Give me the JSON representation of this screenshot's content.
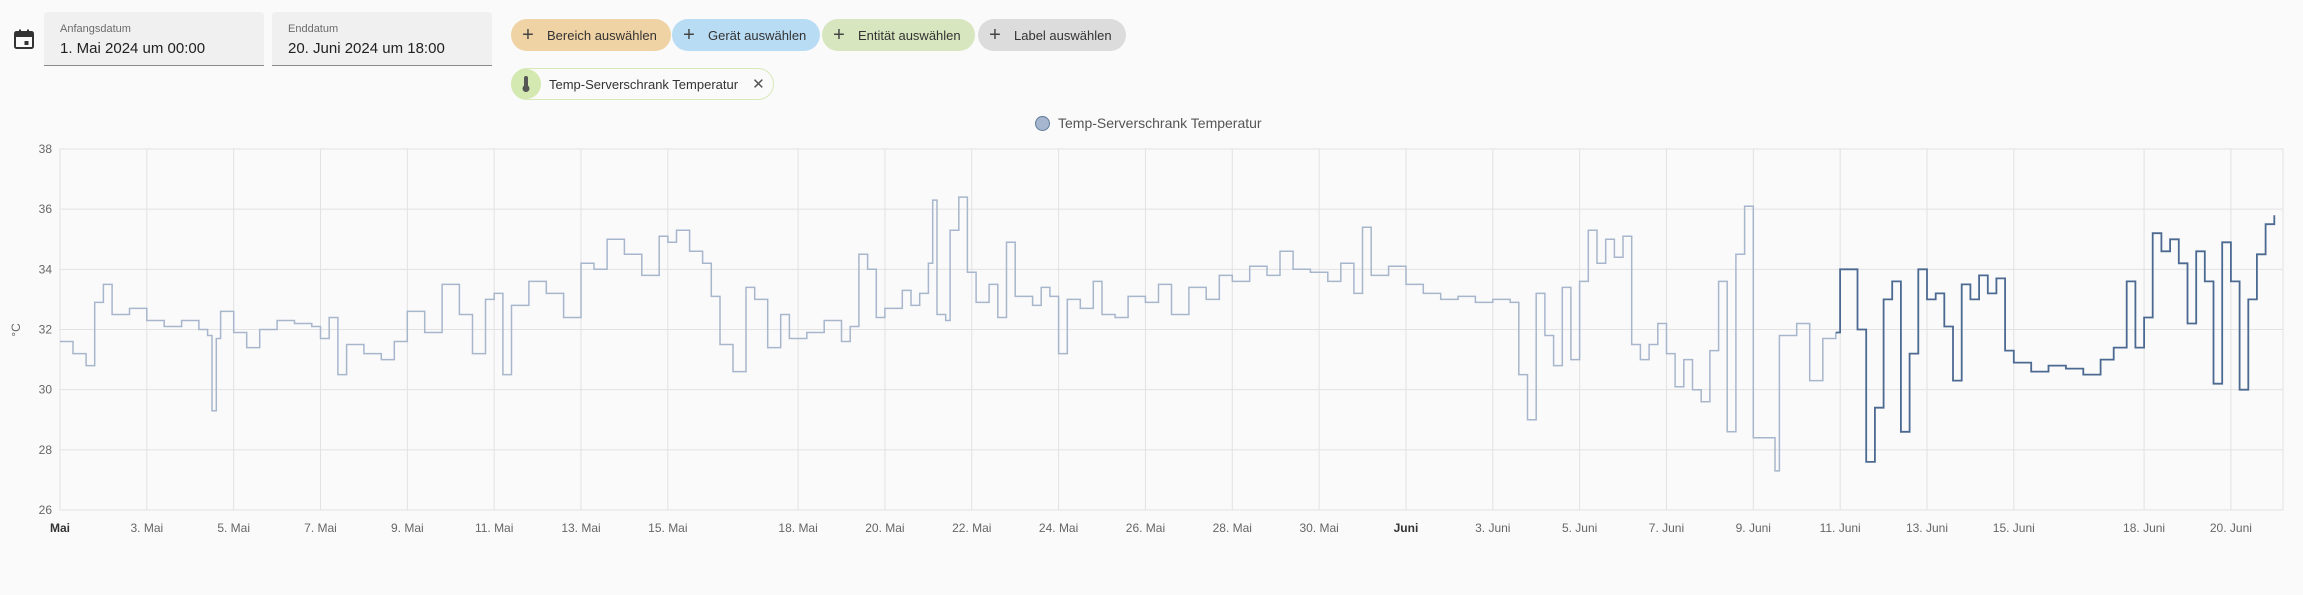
{
  "date_picker": {
    "start_label": "Anfangsdatum",
    "start_value": "1. Mai 2024 um 00:00",
    "end_label": "Enddatum",
    "end_value": "20. Juni 2024 um 18:00"
  },
  "target_chips": [
    {
      "label": "Bereich auswählen",
      "color": "#f0d3a4"
    },
    {
      "label": "Gerät auswählen",
      "color": "#b9dcf5"
    },
    {
      "label": "Entität auswählen",
      "color": "#d7e6be"
    },
    {
      "label": "Label auswählen",
      "color": "#dcdcdc"
    }
  ],
  "selected_entity": {
    "label": "Temp-Serverschrank Temperatur",
    "icon": "thermometer-icon"
  },
  "chart_data": {
    "type": "line",
    "legend": "Temp-Serverschrank Temperatur",
    "ylabel": "°C",
    "ylim": [
      26,
      38
    ],
    "yticks": [
      26,
      28,
      30,
      32,
      34,
      36,
      38
    ],
    "xlim_days": [
      0,
      51.2
    ],
    "xticks": [
      {
        "label": "Mai",
        "day": 0,
        "major": true
      },
      {
        "label": "3. Mai",
        "day": 2
      },
      {
        "label": "5. Mai",
        "day": 4
      },
      {
        "label": "7. Mai",
        "day": 6
      },
      {
        "label": "9. Mai",
        "day": 8
      },
      {
        "label": "11. Mai",
        "day": 10
      },
      {
        "label": "13. Mai",
        "day": 12
      },
      {
        "label": "15. Mai",
        "day": 14
      },
      {
        "label": "18. Mai",
        "day": 17
      },
      {
        "label": "20. Mai",
        "day": 19
      },
      {
        "label": "22. Mai",
        "day": 21
      },
      {
        "label": "24. Mai",
        "day": 23
      },
      {
        "label": "26. Mai",
        "day": 25
      },
      {
        "label": "28. Mai",
        "day": 27
      },
      {
        "label": "30. Mai",
        "day": 29
      },
      {
        "label": "Juni",
        "day": 31,
        "major": true
      },
      {
        "label": "3. Juni",
        "day": 33
      },
      {
        "label": "5. Juni",
        "day": 35
      },
      {
        "label": "7. Juni",
        "day": 37
      },
      {
        "label": "9. Juni",
        "day": 39
      },
      {
        "label": "11. Juni",
        "day": 41
      },
      {
        "label": "13. Juni",
        "day": 43
      },
      {
        "label": "15. Juni",
        "day": 45
      },
      {
        "label": "18. Juni",
        "day": 48
      },
      {
        "label": "20. Juni",
        "day": 50
      }
    ],
    "series": [
      {
        "name": "Temp-Serverschrank Temperatur",
        "colors": {
          "older": "#a7b6cc",
          "recent": "#4c6a91"
        },
        "recent_from_day": 40.9,
        "points": [
          [
            0,
            31.6
          ],
          [
            0.3,
            31.2
          ],
          [
            0.6,
            30.8
          ],
          [
            0.8,
            32.9
          ],
          [
            1.0,
            33.5
          ],
          [
            1.2,
            32.5
          ],
          [
            1.6,
            32.7
          ],
          [
            2.0,
            32.3
          ],
          [
            2.4,
            32.1
          ],
          [
            2.8,
            32.3
          ],
          [
            3.2,
            32.0
          ],
          [
            3.4,
            31.8
          ],
          [
            3.5,
            29.3
          ],
          [
            3.6,
            31.7
          ],
          [
            3.7,
            32.6
          ],
          [
            4.0,
            31.9
          ],
          [
            4.3,
            31.4
          ],
          [
            4.6,
            32.0
          ],
          [
            5.0,
            32.3
          ],
          [
            5.4,
            32.2
          ],
          [
            5.8,
            32.1
          ],
          [
            6.0,
            31.7
          ],
          [
            6.2,
            32.4
          ],
          [
            6.4,
            30.5
          ],
          [
            6.6,
            31.5
          ],
          [
            7.0,
            31.2
          ],
          [
            7.4,
            31.0
          ],
          [
            7.7,
            31.6
          ],
          [
            8.0,
            32.6
          ],
          [
            8.4,
            31.9
          ],
          [
            8.8,
            33.5
          ],
          [
            9.2,
            32.5
          ],
          [
            9.5,
            31.2
          ],
          [
            9.8,
            33.0
          ],
          [
            10.0,
            33.2
          ],
          [
            10.2,
            30.5
          ],
          [
            10.4,
            32.8
          ],
          [
            10.8,
            33.6
          ],
          [
            11.2,
            33.2
          ],
          [
            11.6,
            32.4
          ],
          [
            12.0,
            34.2
          ],
          [
            12.3,
            34.0
          ],
          [
            12.6,
            35.0
          ],
          [
            13.0,
            34.5
          ],
          [
            13.4,
            33.8
          ],
          [
            13.8,
            35.1
          ],
          [
            14.0,
            34.9
          ],
          [
            14.2,
            35.3
          ],
          [
            14.5,
            34.6
          ],
          [
            14.8,
            34.2
          ],
          [
            15.0,
            33.1
          ],
          [
            15.2,
            31.5
          ],
          [
            15.5,
            30.6
          ],
          [
            15.8,
            33.4
          ],
          [
            16.0,
            33.0
          ],
          [
            16.3,
            31.4
          ],
          [
            16.6,
            32.5
          ],
          [
            16.8,
            31.7
          ],
          [
            17.2,
            31.9
          ],
          [
            17.6,
            32.3
          ],
          [
            18.0,
            31.6
          ],
          [
            18.2,
            32.1
          ],
          [
            18.4,
            34.5
          ],
          [
            18.6,
            34.0
          ],
          [
            18.8,
            32.4
          ],
          [
            19.0,
            32.7
          ],
          [
            19.4,
            33.3
          ],
          [
            19.6,
            32.8
          ],
          [
            19.8,
            33.2
          ],
          [
            20.0,
            34.2
          ],
          [
            20.1,
            36.3
          ],
          [
            20.2,
            32.5
          ],
          [
            20.4,
            32.3
          ],
          [
            20.5,
            35.3
          ],
          [
            20.7,
            36.4
          ],
          [
            20.9,
            33.9
          ],
          [
            21.1,
            32.9
          ],
          [
            21.4,
            33.5
          ],
          [
            21.6,
            32.4
          ],
          [
            21.8,
            34.9
          ],
          [
            22.0,
            33.1
          ],
          [
            22.4,
            32.8
          ],
          [
            22.6,
            33.4
          ],
          [
            22.8,
            33.1
          ],
          [
            23.0,
            31.2
          ],
          [
            23.2,
            33.0
          ],
          [
            23.5,
            32.7
          ],
          [
            23.8,
            33.6
          ],
          [
            24.0,
            32.5
          ],
          [
            24.3,
            32.4
          ],
          [
            24.6,
            33.1
          ],
          [
            25.0,
            32.9
          ],
          [
            25.3,
            33.5
          ],
          [
            25.6,
            32.5
          ],
          [
            26.0,
            33.4
          ],
          [
            26.4,
            33.0
          ],
          [
            26.7,
            33.8
          ],
          [
            27.0,
            33.6
          ],
          [
            27.4,
            34.1
          ],
          [
            27.8,
            33.8
          ],
          [
            28.1,
            34.6
          ],
          [
            28.4,
            34.0
          ],
          [
            28.8,
            33.9
          ],
          [
            29.2,
            33.6
          ],
          [
            29.5,
            34.2
          ],
          [
            29.8,
            33.2
          ],
          [
            30.0,
            35.4
          ],
          [
            30.2,
            33.8
          ],
          [
            30.6,
            34.1
          ],
          [
            31.0,
            33.5
          ],
          [
            31.4,
            33.2
          ],
          [
            31.8,
            33.0
          ],
          [
            32.2,
            33.1
          ],
          [
            32.6,
            32.9
          ],
          [
            33.0,
            33.0
          ],
          [
            33.4,
            32.9
          ],
          [
            33.6,
            30.5
          ],
          [
            33.8,
            29.0
          ],
          [
            34.0,
            33.2
          ],
          [
            34.2,
            31.8
          ],
          [
            34.4,
            30.8
          ],
          [
            34.6,
            33.4
          ],
          [
            34.8,
            31.0
          ],
          [
            35.0,
            33.6
          ],
          [
            35.2,
            35.3
          ],
          [
            35.4,
            34.2
          ],
          [
            35.6,
            35.0
          ],
          [
            35.8,
            34.4
          ],
          [
            36.0,
            35.1
          ],
          [
            36.2,
            31.5
          ],
          [
            36.4,
            31.0
          ],
          [
            36.6,
            31.5
          ],
          [
            36.8,
            32.2
          ],
          [
            37.0,
            31.2
          ],
          [
            37.2,
            30.1
          ],
          [
            37.4,
            31.0
          ],
          [
            37.6,
            30.0
          ],
          [
            37.8,
            29.6
          ],
          [
            38.0,
            31.3
          ],
          [
            38.2,
            33.6
          ],
          [
            38.4,
            28.6
          ],
          [
            38.6,
            34.5
          ],
          [
            38.8,
            36.1
          ],
          [
            39.0,
            28.4
          ],
          [
            39.2,
            28.4
          ],
          [
            39.4,
            28.4
          ],
          [
            39.5,
            27.3
          ],
          [
            39.6,
            31.8
          ],
          [
            40.0,
            32.2
          ],
          [
            40.3,
            30.3
          ],
          [
            40.6,
            31.7
          ],
          [
            40.9,
            31.9
          ],
          [
            41.0,
            34.0
          ],
          [
            41.2,
            34.0
          ],
          [
            41.4,
            32.0
          ],
          [
            41.6,
            27.6
          ],
          [
            41.8,
            29.4
          ],
          [
            42.0,
            33.0
          ],
          [
            42.2,
            33.6
          ],
          [
            42.4,
            28.6
          ],
          [
            42.6,
            31.2
          ],
          [
            42.8,
            34.0
          ],
          [
            43.0,
            33.0
          ],
          [
            43.2,
            33.2
          ],
          [
            43.4,
            32.1
          ],
          [
            43.6,
            30.3
          ],
          [
            43.8,
            33.5
          ],
          [
            44.0,
            33.0
          ],
          [
            44.2,
            33.8
          ],
          [
            44.4,
            33.2
          ],
          [
            44.6,
            33.7
          ],
          [
            44.8,
            31.3
          ],
          [
            45.0,
            30.9
          ],
          [
            45.4,
            30.6
          ],
          [
            45.8,
            30.8
          ],
          [
            46.2,
            30.7
          ],
          [
            46.6,
            30.5
          ],
          [
            47.0,
            31.0
          ],
          [
            47.3,
            31.4
          ],
          [
            47.6,
            33.6
          ],
          [
            47.8,
            31.4
          ],
          [
            48.0,
            32.4
          ],
          [
            48.2,
            35.2
          ],
          [
            48.4,
            34.6
          ],
          [
            48.6,
            35.0
          ],
          [
            48.8,
            34.2
          ],
          [
            49.0,
            32.2
          ],
          [
            49.2,
            34.6
          ],
          [
            49.4,
            33.6
          ],
          [
            49.6,
            30.2
          ],
          [
            49.8,
            34.9
          ],
          [
            50.0,
            33.6
          ],
          [
            50.2,
            30.0
          ],
          [
            50.4,
            33.0
          ],
          [
            50.6,
            34.5
          ],
          [
            50.8,
            35.5
          ],
          [
            51.0,
            35.8
          ]
        ]
      }
    ]
  }
}
